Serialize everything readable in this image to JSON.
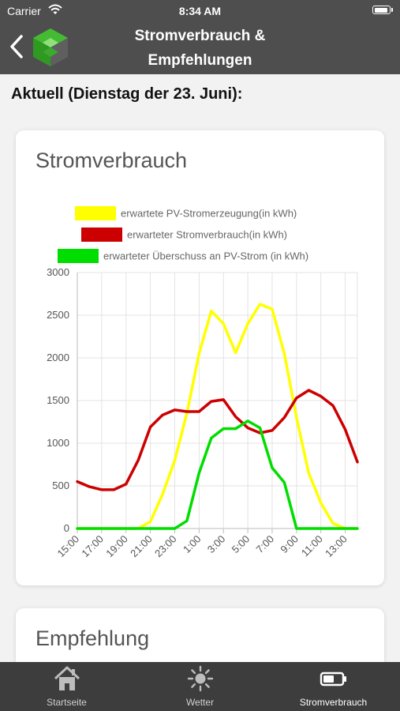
{
  "status_bar": {
    "carrier": "Carrier",
    "time": "8:34 AM"
  },
  "nav": {
    "title_line1": "Stromverbrauch &",
    "title_line2": "Empfehlungen"
  },
  "heading": "Aktuell (Dienstag der 23. Juni):",
  "chart_card": {
    "title": "Stromverbrauch"
  },
  "chart_data": {
    "type": "line",
    "title": "",
    "xlabel": "",
    "ylabel": "",
    "ylim": [
      0,
      3000
    ],
    "yticks": [
      "0",
      "500",
      "1000",
      "1500",
      "2000",
      "2500",
      "3000"
    ],
    "xtick_labels": [
      "15:00",
      "17:00",
      "19:00",
      "21:00",
      "23:00",
      "1:00",
      "3:00",
      "5:00",
      "7:00",
      "9:00",
      "11:00",
      "13:00"
    ],
    "x": [
      "15:00",
      "16:00",
      "17:00",
      "18:00",
      "19:00",
      "20:00",
      "21:00",
      "22:00",
      "23:00",
      "0:00",
      "1:00",
      "2:00",
      "3:00",
      "4:00",
      "5:00",
      "6:00",
      "7:00",
      "8:00",
      "9:00",
      "10:00",
      "11:00",
      "12:00",
      "13:00",
      "14:00"
    ],
    "grid": true,
    "legend_position": "top",
    "series": [
      {
        "name": "erwartete PV-Stromerzeugung(in kWh)",
        "color": "#ffff00",
        "values": [
          0,
          0,
          0,
          0,
          0,
          0,
          80,
          400,
          800,
          1350,
          2050,
          2550,
          2400,
          2060,
          2400,
          2630,
          2570,
          2050,
          1300,
          650,
          300,
          60,
          0,
          0
        ]
      },
      {
        "name": "erwarteter Stromverbrauch(in kWh)",
        "color": "#cc0000",
        "values": [
          550,
          490,
          455,
          455,
          520,
          800,
          1190,
          1330,
          1390,
          1370,
          1370,
          1490,
          1510,
          1310,
          1180,
          1120,
          1150,
          1300,
          1530,
          1620,
          1550,
          1440,
          1160,
          780
        ]
      },
      {
        "name": "erwarteter Überschuss an PV-Strom (in kWh)",
        "color": "#00dd00",
        "values": [
          0,
          0,
          0,
          0,
          0,
          0,
          0,
          0,
          0,
          90,
          650,
          1060,
          1170,
          1170,
          1260,
          1180,
          710,
          540,
          0,
          0,
          0,
          0,
          0,
          0
        ]
      }
    ]
  },
  "recommendation_card": {
    "title": "Empfehlung"
  },
  "tabbar": {
    "tabs": [
      {
        "label": "Startseite",
        "icon": "home-icon"
      },
      {
        "label": "Wetter",
        "icon": "sun-icon"
      },
      {
        "label": "Stromverbrauch",
        "icon": "battery-icon",
        "active": true
      }
    ]
  }
}
